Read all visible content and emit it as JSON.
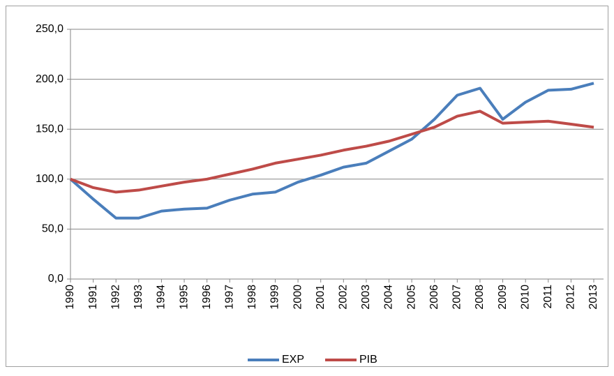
{
  "chart_data": {
    "type": "line",
    "categories": [
      "1990",
      "1991",
      "1992",
      "1993",
      "1994",
      "1995",
      "1996",
      "1997",
      "1998",
      "1999",
      "2000",
      "2001",
      "2002",
      "2003",
      "2004",
      "2005",
      "2006",
      "2007",
      "2008",
      "2009",
      "2010",
      "2011",
      "2012",
      "2013"
    ],
    "series": [
      {
        "name": "EXP",
        "color": "#4a7ebb",
        "values": [
          100,
          80,
          61,
          61,
          68,
          70,
          71,
          79,
          85,
          87,
          97,
          104,
          112,
          116,
          128,
          140,
          160,
          184,
          191,
          160,
          177,
          189,
          190,
          196
        ]
      },
      {
        "name": "PIB",
        "color": "#be4b48",
        "values": [
          100,
          91.5,
          87,
          89,
          93,
          97,
          100,
          105,
          110,
          116,
          120,
          124,
          129,
          133,
          138,
          145,
          152,
          163,
          168,
          156,
          157,
          158,
          155,
          152
        ]
      }
    ],
    "ylim": [
      0,
      250
    ],
    "yticks": [
      {
        "value": 0,
        "label": "0,0"
      },
      {
        "value": 50,
        "label": "50,0"
      },
      {
        "value": 100,
        "label": "100,0"
      },
      {
        "value": 150,
        "label": "150,0"
      },
      {
        "value": 200,
        "label": "200,0"
      },
      {
        "value": 250,
        "label": "250,0"
      }
    ],
    "grid": true,
    "legend": "bottom"
  }
}
